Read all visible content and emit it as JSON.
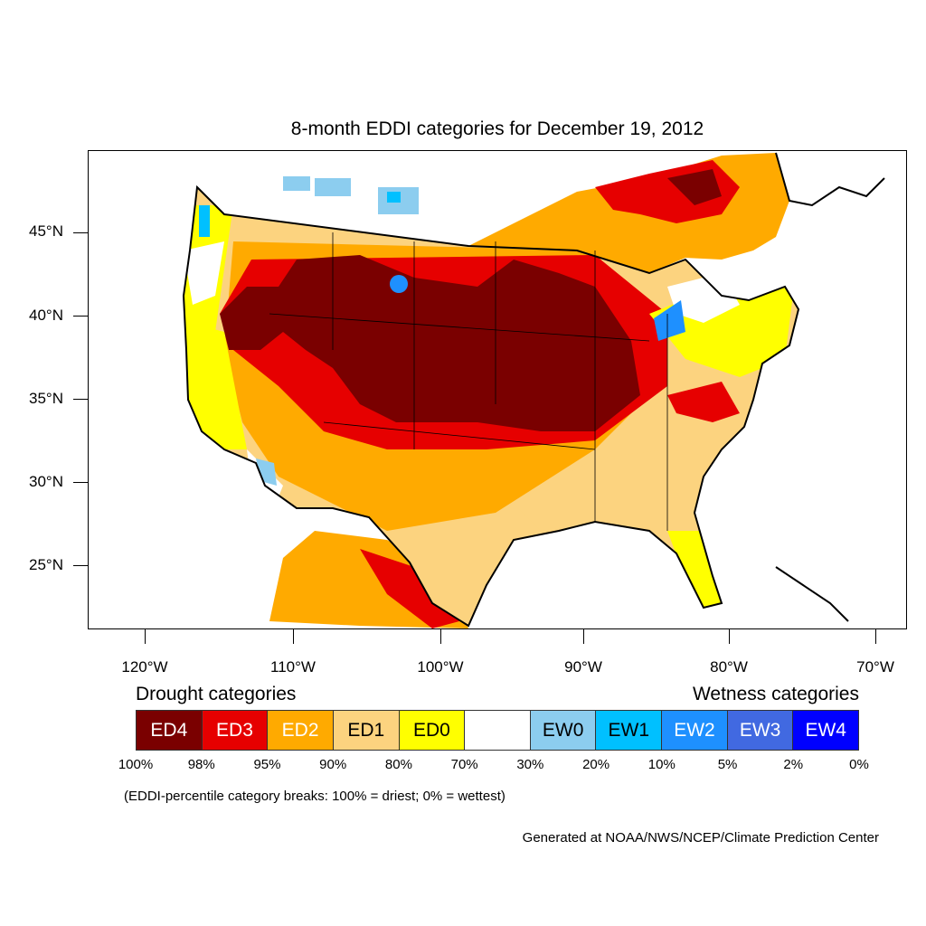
{
  "title": "8-month EDDI categories for December 19, 2012",
  "axes": {
    "y_ticks": [
      "45°N",
      "40°N",
      "35°N",
      "30°N",
      "25°N"
    ],
    "x_ticks": [
      "120°W",
      "110°W",
      "100°W",
      "90°W",
      "80°W",
      "70°W"
    ]
  },
  "legend": {
    "drought_heading": "Drought categories",
    "wetness_heading": "Wetness categories",
    "categories": [
      {
        "label": "ED4",
        "color": "#7a0000",
        "text_color": "#ffffff"
      },
      {
        "label": "ED3",
        "color": "#e60000",
        "text_color": "#ffffff"
      },
      {
        "label": "ED2",
        "color": "#ffaa00",
        "text_color": "#ffffff"
      },
      {
        "label": "ED1",
        "color": "#fcd37f",
        "text_color": "#000000"
      },
      {
        "label": "ED0",
        "color": "#ffff00",
        "text_color": "#000000"
      },
      {
        "label": "",
        "color": "#ffffff",
        "text_color": "#000000"
      },
      {
        "label": "EW0",
        "color": "#8ccdef",
        "text_color": "#000000"
      },
      {
        "label": "EW1",
        "color": "#00c0ff",
        "text_color": "#000000"
      },
      {
        "label": "EW2",
        "color": "#1e90ff",
        "text_color": "#ffffff"
      },
      {
        "label": "EW3",
        "color": "#4169e1",
        "text_color": "#ffffff"
      },
      {
        "label": "EW4",
        "color": "#0000ff",
        "text_color": "#ffffff"
      }
    ],
    "percentiles": [
      "100%",
      "98%",
      "95%",
      "90%",
      "80%",
      "70%",
      "30%",
      "20%",
      "10%",
      "5%",
      "2%",
      "0%"
    ]
  },
  "note": "(EDDI-percentile category breaks: 100% = driest; 0% = wettest)",
  "credit": "Generated at NOAA/NWS/NCEP/Climate Prediction Center"
}
